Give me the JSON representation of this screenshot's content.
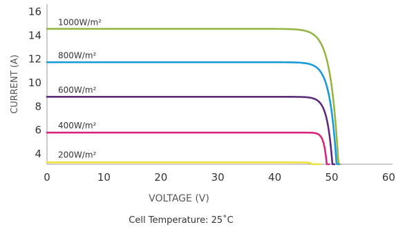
{
  "chart_data": {
    "type": "line",
    "title": "",
    "xlabel": "VOLTAGE (V)",
    "ylabel": "CURRENT (A)",
    "xlim": [
      0,
      60
    ],
    "ylim": [
      3,
      16
    ],
    "x_ticks": [
      "0",
      "10",
      "20",
      "30",
      "40",
      "50",
      "60"
    ],
    "y_ticks": [
      "4",
      "6",
      "8",
      "10",
      "12",
      "14",
      "16"
    ],
    "grid": false,
    "legend": "inline labels above each curve",
    "caption": "Cell Temperature: 25˚C",
    "series": [
      {
        "name": "1000W/m²",
        "color": "#95b543",
        "isc": 14.4,
        "voc": 51.5,
        "knee_voltage": 44.6
      },
      {
        "name": "800W/m²",
        "color": "#189ad6",
        "isc": 11.6,
        "voc": 51.2,
        "knee_voltage": 45.3
      },
      {
        "name": "600W/m²",
        "color": "#5c2a7a",
        "isc": 8.7,
        "voc": 50.5,
        "knee_voltage": 46.0
      },
      {
        "name": "400W/m²",
        "color": "#d8247a",
        "isc": 5.7,
        "voc": 49.5,
        "knee_voltage": 47.0
      },
      {
        "name": "200W/m²",
        "color": "#f0e23a",
        "isc": 3.2,
        "voc": 48.0,
        "knee_voltage": 45.8
      }
    ]
  }
}
